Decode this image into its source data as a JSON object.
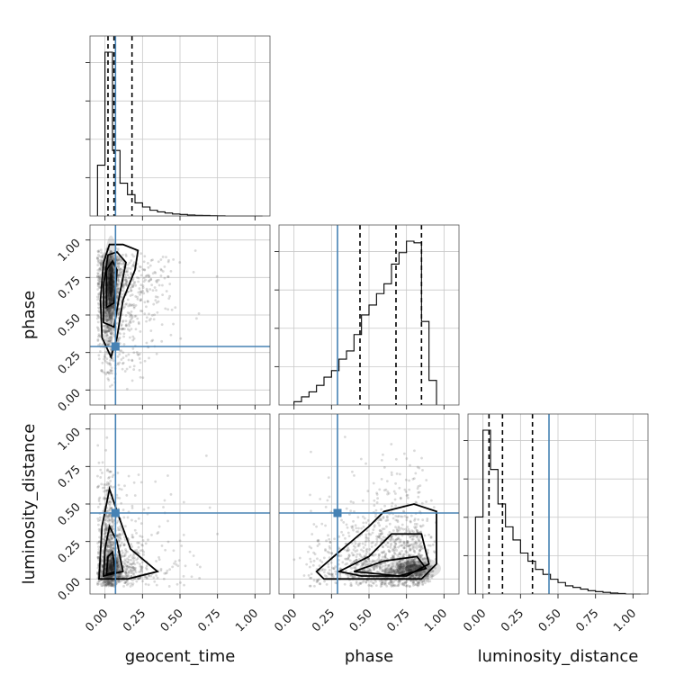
{
  "chart_data": {
    "type": "corner",
    "parameters": [
      "geocent_time",
      "phase",
      "luminosity_distance"
    ],
    "axis_labels": {
      "x": [
        "geocent_time",
        "phase",
        "luminosity_distance"
      ],
      "y": [
        "",
        "phase",
        "luminosity_distance"
      ]
    },
    "range": [
      -0.1,
      1.1
    ],
    "ticks": [
      0.0,
      0.25,
      0.5,
      0.75,
      1.0
    ],
    "tick_labels": [
      "0.00",
      "0.25",
      "0.50",
      "0.75",
      "1.00"
    ],
    "truth": {
      "geocent_time": 0.07,
      "phase": 0.29,
      "luminosity_distance": 0.44
    },
    "quantiles": {
      "geocent_time": [
        0.02,
        0.06,
        0.18
      ],
      "phase": [
        0.44,
        0.68,
        0.85
      ],
      "luminosity_distance": [
        0.04,
        0.13,
        0.33
      ]
    },
    "histograms": {
      "geocent_time": {
        "bins": [
          -0.05,
          0.0,
          0.05,
          0.1,
          0.15,
          0.2,
          0.25,
          0.3,
          0.35,
          0.4,
          0.45,
          0.5,
          0.55,
          0.6,
          0.65,
          0.7,
          0.75,
          0.8,
          0.85,
          0.9,
          0.95,
          1.0,
          1.05
        ],
        "counts": [
          0.31,
          1.0,
          0.4,
          0.2,
          0.13,
          0.08,
          0.055,
          0.035,
          0.025,
          0.018,
          0.012,
          0.009,
          0.006,
          0.004,
          0.003,
          0.002,
          0.001,
          0.0,
          0.0,
          0.0,
          0.0,
          0.0
        ]
      },
      "phase": {
        "bins": [
          0.0,
          0.05,
          0.1,
          0.15,
          0.2,
          0.25,
          0.3,
          0.35,
          0.4,
          0.45,
          0.5,
          0.55,
          0.6,
          0.65,
          0.7,
          0.75,
          0.8,
          0.85,
          0.9,
          0.95
        ],
        "counts": [
          0.02,
          0.05,
          0.08,
          0.12,
          0.17,
          0.21,
          0.28,
          0.33,
          0.43,
          0.55,
          0.61,
          0.68,
          0.74,
          0.86,
          0.93,
          1.0,
          0.99,
          0.51,
          0.15
        ]
      },
      "luminosity_distance": {
        "bins": [
          -0.05,
          0.0,
          0.05,
          0.1,
          0.15,
          0.2,
          0.25,
          0.3,
          0.35,
          0.4,
          0.45,
          0.5,
          0.55,
          0.6,
          0.65,
          0.7,
          0.75,
          0.8,
          0.85,
          0.9,
          0.95,
          1.0,
          1.05
        ],
        "counts": [
          0.47,
          1.0,
          0.76,
          0.55,
          0.41,
          0.33,
          0.25,
          0.2,
          0.15,
          0.12,
          0.09,
          0.07,
          0.05,
          0.04,
          0.03,
          0.02,
          0.015,
          0.01,
          0.006,
          0.003,
          0.0,
          0.0
        ]
      }
    },
    "grid": true
  }
}
